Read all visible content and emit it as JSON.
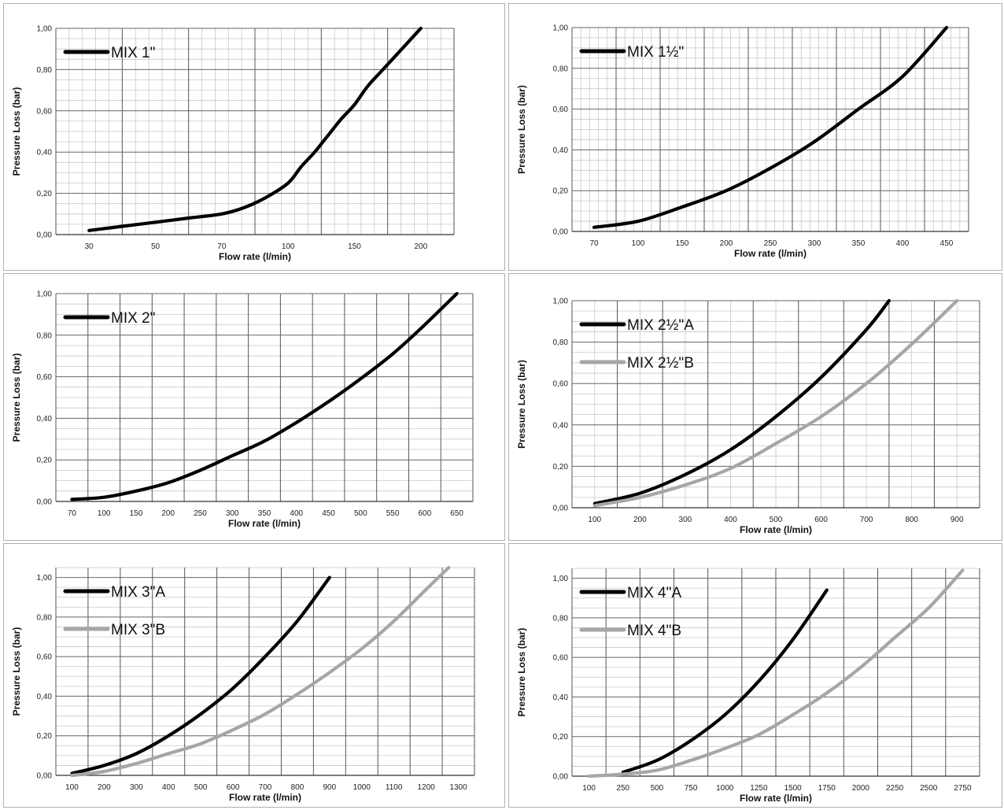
{
  "chart_data": [
    {
      "type": "line",
      "xlabel": "Flow rate (l/min)",
      "ylabel": "Pressure Loss (bar)",
      "x_ticks": [
        "30",
        "50",
        "70",
        "100",
        "150",
        "200"
      ],
      "y_ticks": [
        "0,00",
        "0,20",
        "0,40",
        "0,60",
        "0,80",
        "1,00"
      ],
      "ylim": [
        0,
        1
      ],
      "grid": true,
      "legend_position": "top-left",
      "series": [
        {
          "name": "MIX 1\"",
          "color": "#000000",
          "x": [
            30,
            40,
            50,
            60,
            70,
            80,
            90,
            100,
            110,
            120,
            130,
            140,
            150,
            160,
            170,
            180,
            190,
            200
          ],
          "y": [
            0.02,
            0.04,
            0.06,
            0.08,
            0.1,
            0.13,
            0.18,
            0.25,
            0.33,
            0.4,
            0.48,
            0.56,
            0.63,
            0.72,
            0.79,
            0.86,
            0.93,
            1.0
          ]
        }
      ]
    },
    {
      "type": "line",
      "xlabel": "Flow rate (l/min)",
      "ylabel": "Pressure Loss (bar)",
      "x_ticks": [
        "70",
        "100",
        "150",
        "200",
        "250",
        "300",
        "350",
        "400",
        "450"
      ],
      "y_ticks": [
        "0,00",
        "0,20",
        "0,40",
        "0,60",
        "0,80",
        "1,00"
      ],
      "ylim": [
        0,
        1
      ],
      "grid": true,
      "legend_position": "top-left",
      "series": [
        {
          "name": "MIX 1½\"",
          "color": "#000000",
          "x": [
            70,
            100,
            150,
            200,
            250,
            300,
            350,
            400,
            450
          ],
          "y": [
            0.02,
            0.05,
            0.12,
            0.2,
            0.31,
            0.44,
            0.6,
            0.76,
            1.0
          ]
        }
      ]
    },
    {
      "type": "line",
      "xlabel": "Flow rate (l/min)",
      "ylabel": "Pressure Loss (bar)",
      "x_ticks": [
        "70",
        "100",
        "150",
        "200",
        "250",
        "300",
        "350",
        "400",
        "450",
        "500",
        "550",
        "600",
        "650"
      ],
      "y_ticks": [
        "0,00",
        "0,20",
        "0,40",
        "0,60",
        "0,80",
        "1,00"
      ],
      "ylim": [
        0,
        1
      ],
      "grid": true,
      "legend_position": "top-left",
      "series": [
        {
          "name": "MIX 2\"",
          "color": "#000000",
          "x": [
            70,
            100,
            150,
            200,
            250,
            300,
            350,
            400,
            450,
            500,
            550,
            600,
            650
          ],
          "y": [
            0.01,
            0.02,
            0.05,
            0.09,
            0.15,
            0.22,
            0.29,
            0.38,
            0.48,
            0.59,
            0.71,
            0.85,
            1.0
          ]
        }
      ]
    },
    {
      "type": "line",
      "xlabel": "Flow rate (l/min)",
      "ylabel": "Pressure Loss (bar)",
      "x_ticks": [
        "100",
        "200",
        "300",
        "400",
        "500",
        "600",
        "700",
        "800",
        "900"
      ],
      "y_ticks": [
        "0,00",
        "0,20",
        "0,40",
        "0,60",
        "0,80",
        "1,00"
      ],
      "ylim": [
        0,
        1
      ],
      "grid": true,
      "legend_position": "top-left",
      "series": [
        {
          "name": "MIX 2½\"A",
          "color": "#000000",
          "x": [
            100,
            200,
            300,
            400,
            500,
            600,
            700,
            750
          ],
          "y": [
            0.02,
            0.07,
            0.16,
            0.28,
            0.44,
            0.63,
            0.86,
            1.0
          ]
        },
        {
          "name": "MIX 2½\"B",
          "color": "#a6a6a6",
          "x": [
            100,
            200,
            300,
            400,
            500,
            600,
            700,
            800,
            900
          ],
          "y": [
            0.01,
            0.05,
            0.11,
            0.19,
            0.31,
            0.44,
            0.6,
            0.79,
            1.0
          ]
        }
      ]
    },
    {
      "type": "line",
      "xlabel": "Flow rate (l/min)",
      "ylabel": "Pressure Loss (bar)",
      "x_ticks": [
        "100",
        "200",
        "300",
        "400",
        "500",
        "600",
        "700",
        "800",
        "900",
        "1000",
        "1100",
        "1200",
        "1300"
      ],
      "y_ticks": [
        "0,00",
        "0,20",
        "0,40",
        "0,60",
        "0,80",
        "1,00"
      ],
      "ylim": [
        0,
        1.05
      ],
      "grid": true,
      "legend_position": "top-left",
      "series": [
        {
          "name": "MIX 3\"A",
          "color": "#000000",
          "x": [
            100,
            200,
            300,
            400,
            500,
            600,
            700,
            800,
            900
          ],
          "y": [
            0.01,
            0.05,
            0.11,
            0.2,
            0.31,
            0.44,
            0.6,
            0.78,
            1.0
          ]
        },
        {
          "name": "MIX 3\"B",
          "color": "#a6a6a6",
          "x": [
            100,
            200,
            300,
            400,
            500,
            600,
            700,
            800,
            900,
            1000,
            1100,
            1200,
            1270
          ],
          "y": [
            0.0,
            0.02,
            0.06,
            0.11,
            0.16,
            0.23,
            0.31,
            0.41,
            0.52,
            0.64,
            0.78,
            0.94,
            1.05
          ]
        }
      ]
    },
    {
      "type": "line",
      "xlabel": "Flow rate (l/min)",
      "ylabel": "Pressure Loss (bar)",
      "x_ticks": [
        "100",
        "250",
        "500",
        "750",
        "1000",
        "1250",
        "1500",
        "1750",
        "2000",
        "2250",
        "2500",
        "2750"
      ],
      "y_ticks": [
        "0,00",
        "0,20",
        "0,40",
        "0,60",
        "0,80",
        "1,00"
      ],
      "ylim": [
        0,
        1.05
      ],
      "grid": true,
      "legend_position": "top-left",
      "series": [
        {
          "name": "MIX 4\"A",
          "color": "#000000",
          "x": [
            250,
            500,
            750,
            1000,
            1250,
            1500,
            1750
          ],
          "y": [
            0.02,
            0.08,
            0.18,
            0.31,
            0.48,
            0.69,
            0.94
          ]
        },
        {
          "name": "MIX 4\"B",
          "color": "#a6a6a6",
          "x": [
            100,
            250,
            500,
            750,
            1000,
            1250,
            1500,
            1750,
            2000,
            2250,
            2500,
            2750
          ],
          "y": [
            0.0,
            0.01,
            0.03,
            0.08,
            0.14,
            0.21,
            0.31,
            0.42,
            0.55,
            0.7,
            0.85,
            1.04
          ]
        }
      ]
    }
  ]
}
